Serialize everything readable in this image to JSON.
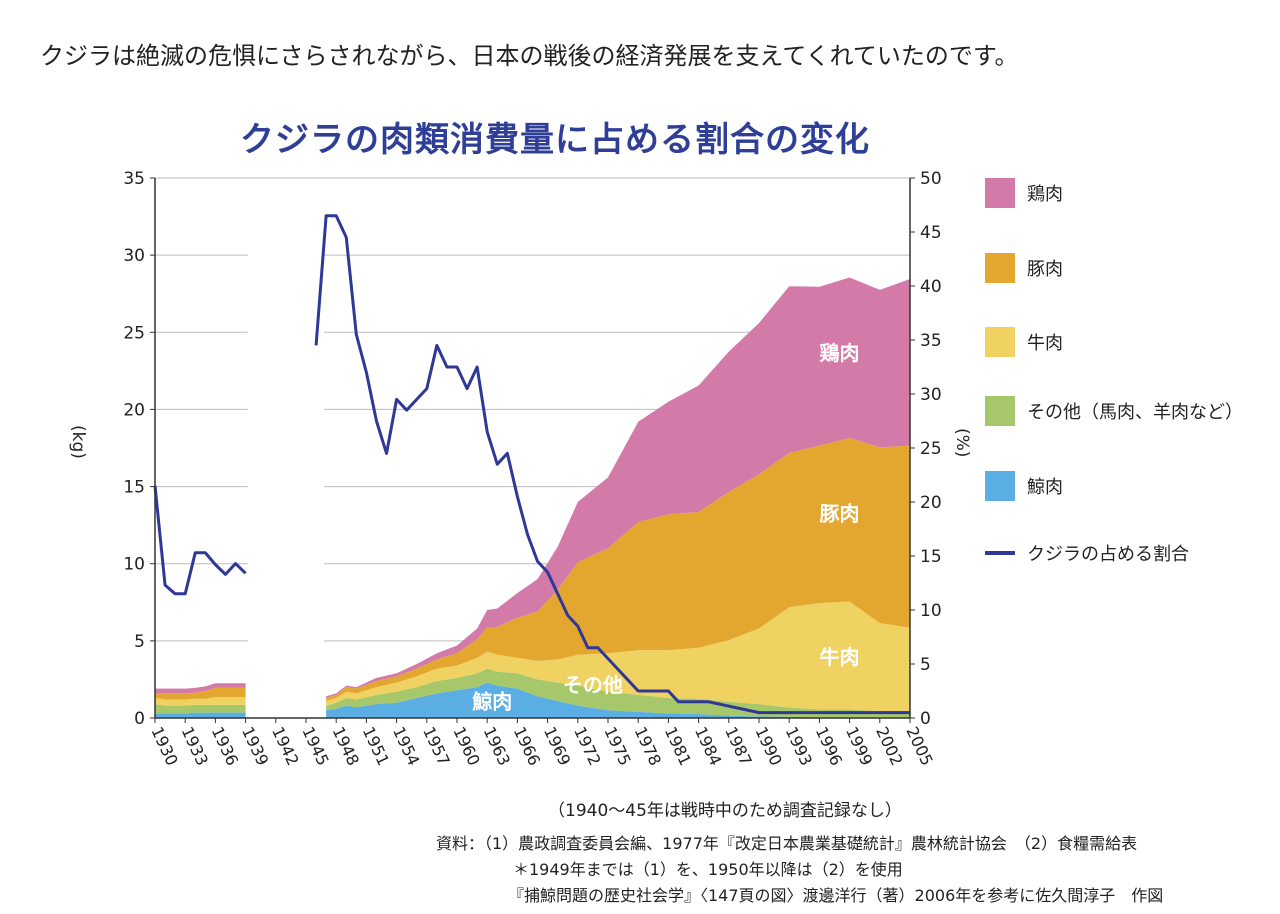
{
  "headline": "クジラは絶滅の危惧にさらされながら、日本の戦後の経済発展を支えてくれていたのです。",
  "note": "（1940〜45年は戦時中のため調査記録なし）",
  "source": {
    "line1": "資料：（1）農政調査委員会編、1977年『改定日本農業基礎統計』農林統計協会　（2）食糧需給表",
    "line2": "＊1949年までは（1）を、1950年以降は（2）を使用",
    "line3": "『捕鯨問題の歴史社会学』〈147頁の図〉渡邊洋行（著）2006年を参考に佐久間淳子　作図"
  },
  "colors": {
    "chicken": "#d47aa9",
    "pork": "#e3a72f",
    "beef": "#efd262",
    "other": "#a6c86b",
    "whale": "#5aaee3",
    "line": "#2f3897",
    "title": "#2f3f97"
  },
  "chart_data": {
    "type": "area",
    "title": "クジラの肉類消費量に占める割合の変化",
    "ylabel": "(kg)",
    "y2label": "(%)",
    "ylim": [
      0,
      35
    ],
    "y2lim": [
      0,
      50
    ],
    "yticks": [
      0,
      5,
      10,
      15,
      20,
      25,
      30,
      35
    ],
    "y2ticks": [
      0,
      5,
      10,
      15,
      20,
      25,
      30,
      35,
      40,
      45,
      50
    ],
    "xlim": [
      1930,
      2005
    ],
    "xticks": [
      1930,
      1933,
      1936,
      1939,
      1942,
      1945,
      1948,
      1951,
      1954,
      1957,
      1960,
      1963,
      1966,
      1969,
      1972,
      1975,
      1978,
      1981,
      1984,
      1987,
      1990,
      1993,
      1996,
      1999,
      2002,
      2005
    ],
    "grid": true,
    "legend_position": "right",
    "legend": [
      {
        "key": "chicken",
        "label": "鶏肉",
        "kind": "area"
      },
      {
        "key": "pork",
        "label": "豚肉",
        "kind": "area"
      },
      {
        "key": "beef",
        "label": "牛肉",
        "kind": "area"
      },
      {
        "key": "other",
        "label": "その他（馬肉、羊肉など）",
        "kind": "area"
      },
      {
        "key": "whale",
        "label": "鯨肉",
        "kind": "area"
      },
      {
        "key": "share",
        "label": "クジラの占める割合",
        "kind": "line"
      }
    ],
    "area_labels": [
      {
        "text": "鶏肉",
        "x": 1998,
        "y": 23.2,
        "color": "#ffffff"
      },
      {
        "text": "豚肉",
        "x": 1998,
        "y": 12.8,
        "color": "#ffffff"
      },
      {
        "text": "牛肉",
        "x": 1998,
        "y": 3.5,
        "color": "#ffffff"
      },
      {
        "text": "その他",
        "x": 1973.5,
        "y": 1.7,
        "color": "#ffffff"
      },
      {
        "text": "鯨肉",
        "x": 1963.5,
        "y": 0.6,
        "color": "#ffffff"
      }
    ],
    "series": [
      {
        "key": "whale",
        "x": [
          1930,
          1931,
          1932,
          1933,
          1934,
          1935,
          1936,
          1937,
          1938,
          1939
        ],
        "values": [
          0.3,
          0.3,
          0.3,
          0.3,
          0.35,
          0.35,
          0.35,
          0.35,
          0.35,
          0.35
        ]
      },
      {
        "key": "other",
        "x": [
          1930,
          1931,
          1932,
          1933,
          1934,
          1935,
          1936,
          1937,
          1938,
          1939
        ],
        "values": [
          0.6,
          0.5,
          0.5,
          0.5,
          0.5,
          0.5,
          0.5,
          0.5,
          0.5,
          0.5
        ]
      },
      {
        "key": "beef",
        "x": [
          1930,
          1931,
          1932,
          1933,
          1934,
          1935,
          1936,
          1937,
          1938,
          1939
        ],
        "values": [
          0.4,
          0.4,
          0.4,
          0.4,
          0.4,
          0.4,
          0.5,
          0.5,
          0.5,
          0.5
        ]
      },
      {
        "key": "pork",
        "x": [
          1930,
          1931,
          1932,
          1933,
          1934,
          1935,
          1936,
          1937,
          1938,
          1939
        ],
        "values": [
          0.3,
          0.4,
          0.4,
          0.4,
          0.4,
          0.5,
          0.6,
          0.6,
          0.6,
          0.6
        ]
      },
      {
        "key": "chicken",
        "x": [
          1930,
          1931,
          1932,
          1933,
          1934,
          1935,
          1936,
          1937,
          1938,
          1939
        ],
        "values": [
          0.3,
          0.3,
          0.3,
          0.3,
          0.3,
          0.3,
          0.3,
          0.3,
          0.3,
          0.3
        ]
      },
      {
        "key": "whale",
        "x": [
          1947,
          1948,
          1949,
          1950,
          1952,
          1954,
          1956,
          1958,
          1960,
          1962,
          1963,
          1964,
          1966,
          1968,
          1970,
          1972,
          1975,
          1978,
          1981,
          1984,
          1987,
          1990,
          1993,
          1996,
          1999,
          2002,
          2005
        ],
        "values": [
          0.5,
          0.6,
          0.8,
          0.7,
          0.9,
          1.0,
          1.3,
          1.6,
          1.8,
          2.0,
          2.3,
          2.1,
          1.9,
          1.4,
          1.1,
          0.8,
          0.5,
          0.4,
          0.3,
          0.25,
          0.15,
          0.1,
          0.08,
          0.05,
          0.05,
          0.05,
          0.05
        ]
      },
      {
        "key": "other",
        "x": [
          1947,
          1948,
          1949,
          1950,
          1952,
          1954,
          1956,
          1958,
          1960,
          1962,
          1963,
          1964,
          1966,
          1968,
          1970,
          1972,
          1975,
          1978,
          1981,
          1984,
          1987,
          1990,
          1993,
          1996,
          1999,
          2002,
          2005
        ],
        "values": [
          0.3,
          0.4,
          0.5,
          0.5,
          0.6,
          0.7,
          0.7,
          0.8,
          0.8,
          0.9,
          0.9,
          0.9,
          1.0,
          1.1,
          1.2,
          1.3,
          1.2,
          1.1,
          1.0,
          1.0,
          0.9,
          0.8,
          0.6,
          0.5,
          0.5,
          0.4,
          0.4
        ]
      },
      {
        "key": "beef",
        "x": [
          1947,
          1948,
          1949,
          1950,
          1952,
          1954,
          1956,
          1958,
          1960,
          1962,
          1963,
          1964,
          1966,
          1968,
          1970,
          1972,
          1975,
          1978,
          1981,
          1984,
          1987,
          1990,
          1993,
          1996,
          1999,
          2002,
          2005
        ],
        "values": [
          0.3,
          0.3,
          0.4,
          0.4,
          0.5,
          0.6,
          0.7,
          0.8,
          0.8,
          1.0,
          1.1,
          1.1,
          1.0,
          1.2,
          1.5,
          2.0,
          2.5,
          2.9,
          3.1,
          3.3,
          4.0,
          4.9,
          6.5,
          6.9,
          7.0,
          5.7,
          5.4
        ]
      },
      {
        "key": "pork",
        "x": [
          1947,
          1948,
          1949,
          1950,
          1952,
          1954,
          1956,
          1958,
          1960,
          1962,
          1963,
          1964,
          1966,
          1968,
          1970,
          1972,
          1975,
          1978,
          1981,
          1984,
          1987,
          1990,
          1993,
          1996,
          1999,
          2002,
          2005
        ],
        "values": [
          0.2,
          0.2,
          0.3,
          0.3,
          0.4,
          0.4,
          0.5,
          0.6,
          0.8,
          1.2,
          1.6,
          1.8,
          2.6,
          3.2,
          4.5,
          6.0,
          6.8,
          8.3,
          8.8,
          8.8,
          9.6,
          10.0,
          10.0,
          10.2,
          10.6,
          11.4,
          11.8
        ]
      },
      {
        "key": "chicken",
        "x": [
          1947,
          1948,
          1949,
          1950,
          1952,
          1954,
          1956,
          1958,
          1960,
          1962,
          1963,
          1964,
          1966,
          1968,
          1970,
          1972,
          1975,
          1978,
          1981,
          1984,
          1987,
          1990,
          1993,
          1996,
          1999,
          2002,
          2005
        ],
        "values": [
          0.1,
          0.1,
          0.1,
          0.1,
          0.2,
          0.2,
          0.3,
          0.4,
          0.5,
          0.7,
          1.1,
          1.2,
          1.6,
          2.1,
          2.8,
          3.9,
          4.6,
          6.5,
          7.3,
          8.2,
          9.1,
          9.8,
          10.8,
          10.3,
          10.4,
          10.2,
          10.8
        ]
      }
    ],
    "share_line": {
      "segments": [
        {
          "x": [
            1930,
            1931,
            1932,
            1933,
            1934,
            1935,
            1936,
            1937,
            1938,
            1939
          ],
          "y": [
            21.5,
            12.3,
            11.5,
            11.5,
            15.3,
            15.3,
            14.2,
            13.3,
            14.3,
            13.4
          ]
        },
        {
          "x": [
            1946,
            1947,
            1948,
            1949,
            1950,
            1951,
            1952,
            1953,
            1954,
            1955,
            1956,
            1957,
            1958,
            1959,
            1960,
            1961,
            1962,
            1963,
            1964,
            1965,
            1966,
            1967,
            1968,
            1969,
            1970,
            1971,
            1972,
            1973,
            1974,
            1975,
            1976,
            1977,
            1978,
            1979,
            1980,
            1981,
            1982,
            1983,
            1984,
            1985,
            1990,
            1995,
            2000,
            2005
          ],
          "y": [
            34.5,
            46.5,
            46.5,
            44.5,
            35.5,
            32.0,
            27.5,
            24.5,
            29.5,
            28.5,
            29.5,
            30.5,
            34.5,
            32.5,
            32.5,
            30.5,
            32.5,
            26.5,
            23.5,
            24.5,
            20.5,
            17.0,
            14.5,
            13.5,
            11.5,
            9.5,
            8.5,
            6.5,
            6.5,
            5.5,
            4.5,
            3.5,
            2.5,
            2.5,
            2.5,
            2.5,
            1.5,
            1.5,
            1.5,
            1.5,
            0.5,
            0.5,
            0.5,
            0.5
          ]
        }
      ]
    }
  }
}
